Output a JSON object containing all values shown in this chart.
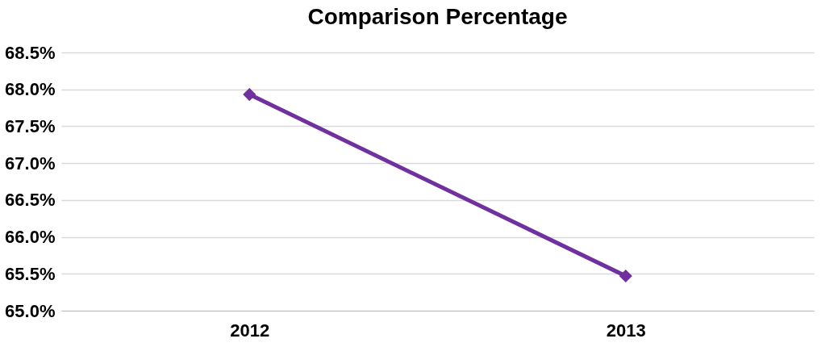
{
  "chart_data": {
    "type": "line",
    "title": "Comparison Percentage",
    "categories": [
      "2012",
      "2013"
    ],
    "series": [
      {
        "color": "#7030a0",
        "values": [
          67.93,
          65.47
        ]
      }
    ],
    "ylim": [
      65.0,
      68.5
    ],
    "yticks": [
      {
        "value": 65.0,
        "label": "65.0%"
      },
      {
        "value": 65.5,
        "label": "65.5%"
      },
      {
        "value": 66.0,
        "label": "66.0%"
      },
      {
        "value": 66.5,
        "label": "66.5%"
      },
      {
        "value": 67.0,
        "label": "67.0%"
      },
      {
        "value": 67.5,
        "label": "67.5%"
      },
      {
        "value": 68.0,
        "label": "68.0%"
      },
      {
        "value": 68.5,
        "label": "68.5%"
      }
    ],
    "grid": "y",
    "marker": "diamond",
    "line_style": "solid"
  }
}
